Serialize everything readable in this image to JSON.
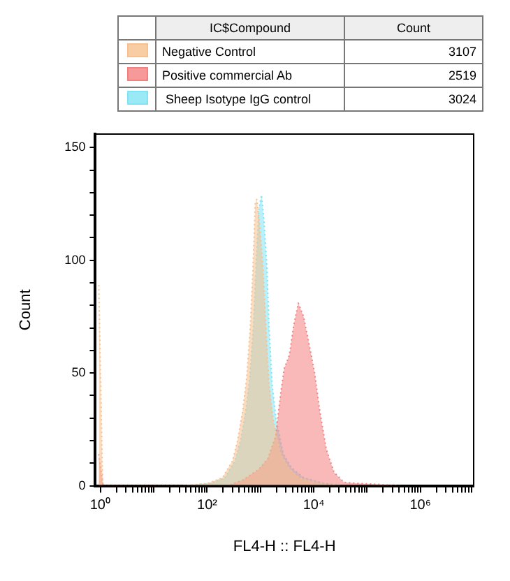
{
  "chart_data": {
    "type": "area",
    "xlabel": "FL4-H :: FL4-H",
    "ylabel": "Count",
    "legend_title": "IC$Compound",
    "annotations": [
      "Count",
      "3107",
      "2519",
      "3024"
    ],
    "legend": "top",
    "marker": "none",
    "line_style": "dotted",
    "grid": false,
    "log": "x",
    "xlim": [
      0.8,
      10000000
    ],
    "ylim": [
      0,
      156
    ],
    "xticks": [
      {
        "value": 1,
        "label": "10⁰"
      },
      {
        "value": 2,
        "label": null
      },
      {
        "value": 3,
        "label": null
      },
      {
        "value": 4,
        "label": null
      },
      {
        "value": 5,
        "label": null
      },
      {
        "value": 6,
        "label": null
      },
      {
        "value": 7,
        "label": null
      },
      {
        "value": 8,
        "label": null
      },
      {
        "value": 9,
        "label": null
      },
      {
        "value": 10,
        "label": null
      },
      {
        "value": 20,
        "label": null
      },
      {
        "value": 30,
        "label": null
      },
      {
        "value": 40,
        "label": null
      },
      {
        "value": 50,
        "label": null
      },
      {
        "value": 60,
        "label": null
      },
      {
        "value": 70,
        "label": null
      },
      {
        "value": 80,
        "label": null
      },
      {
        "value": 90,
        "label": null
      },
      {
        "value": 100,
        "label": "10²"
      },
      {
        "value": 200,
        "label": null
      },
      {
        "value": 300,
        "label": null
      },
      {
        "value": 400,
        "label": null
      },
      {
        "value": 500,
        "label": null
      },
      {
        "value": 600,
        "label": null
      },
      {
        "value": 700,
        "label": null
      },
      {
        "value": 800,
        "label": null
      },
      {
        "value": 900,
        "label": null
      },
      {
        "value": 1000,
        "label": null
      },
      {
        "value": 2000,
        "label": null
      },
      {
        "value": 3000,
        "label": null
      },
      {
        "value": 4000,
        "label": null
      },
      {
        "value": 5000,
        "label": null
      },
      {
        "value": 6000,
        "label": null
      },
      {
        "value": 7000,
        "label": null
      },
      {
        "value": 8000,
        "label": null
      },
      {
        "value": 9000,
        "label": null
      },
      {
        "value": 10000,
        "label": "10⁴"
      },
      {
        "value": 20000,
        "label": null
      },
      {
        "value": 30000,
        "label": null
      },
      {
        "value": 40000,
        "label": null
      },
      {
        "value": 50000,
        "label": null
      },
      {
        "value": 60000,
        "label": null
      },
      {
        "value": 70000,
        "label": null
      },
      {
        "value": 80000,
        "label": null
      },
      {
        "value": 90000,
        "label": null
      },
      {
        "value": 100000,
        "label": null
      },
      {
        "value": 200000,
        "label": null
      },
      {
        "value": 300000,
        "label": null
      },
      {
        "value": 400000,
        "label": null
      },
      {
        "value": 500000,
        "label": null
      },
      {
        "value": 600000,
        "label": null
      },
      {
        "value": 700000,
        "label": null
      },
      {
        "value": 800000,
        "label": null
      },
      {
        "value": 900000,
        "label": null
      },
      {
        "value": 1000000,
        "label": "10⁶"
      },
      {
        "value": 2000000,
        "label": null
      },
      {
        "value": 3000000,
        "label": null
      },
      {
        "value": 4000000,
        "label": null
      },
      {
        "value": 5000000,
        "label": null
      },
      {
        "value": 6000000,
        "label": null
      },
      {
        "value": 7000000,
        "label": null
      },
      {
        "value": 8000000,
        "label": null
      },
      {
        "value": 9000000,
        "label": null
      }
    ],
    "yticks": [
      0,
      {
        "value": 10,
        "label": null
      },
      {
        "value": 20,
        "label": null
      },
      {
        "value": 30,
        "label": null
      },
      {
        "value": 40,
        "label": null
      },
      50,
      {
        "value": 60,
        "label": null
      },
      {
        "value": 70,
        "label": null
      },
      {
        "value": 80,
        "label": null
      },
      {
        "value": 90,
        "label": null
      },
      100,
      {
        "value": 110,
        "label": null
      },
      {
        "value": 120,
        "label": null
      },
      {
        "value": 130,
        "label": null
      },
      {
        "value": 140,
        "label": null
      },
      150
    ],
    "series": [
      {
        "name": "Negative Control",
        "color": "#f8c08c",
        "x": [
          0.93,
          1.1,
          33,
          100,
          193,
          300,
          372,
          464,
          553,
          647,
          724,
          800,
          855,
          955,
          1120,
          1260,
          1450,
          1740,
          2400,
          3330,
          5150,
          12600,
          30000
        ],
        "values": [
          89,
          0,
          0,
          1,
          3.5,
          11,
          20,
          33,
          48,
          71,
          96,
          125,
          127,
          117,
          96,
          71,
          45,
          29,
          14,
          8,
          3.6,
          1,
          0
        ]
      },
      {
        "name": "Positive commercial Ab",
        "color": "#f48080",
        "x": [
          0.93,
          1.12,
          240,
          464,
          900,
          1380,
          1930,
          2400,
          2800,
          3500,
          4200,
          5150,
          6450,
          8000,
          10400,
          13000,
          17300,
          24000,
          37000,
          72000,
          112000,
          174000,
          417000
        ],
        "values": [
          14,
          0,
          0,
          2.5,
          7,
          12,
          22,
          41,
          52,
          58,
          71,
          81,
          75,
          64,
          50,
          33,
          16,
          6,
          1.5,
          1,
          0.8,
          0.6,
          0
        ]
      },
      {
        "name": " Sheep Isotype IgG control",
        "color": "#80e4f4",
        "x": [
          37,
          112,
          215,
          333,
          424,
          530,
          630,
          740,
          820,
          935,
          1050,
          1170,
          1330,
          1450,
          1660,
          1980,
          2700,
          3800,
          6450,
          15500,
          37000
        ],
        "values": [
          0,
          1,
          3.5,
          11,
          20,
          33,
          48,
          71,
          96,
          123,
          129,
          117,
          96,
          71,
          45,
          29,
          14,
          8,
          3.6,
          1,
          0
        ]
      }
    ]
  }
}
